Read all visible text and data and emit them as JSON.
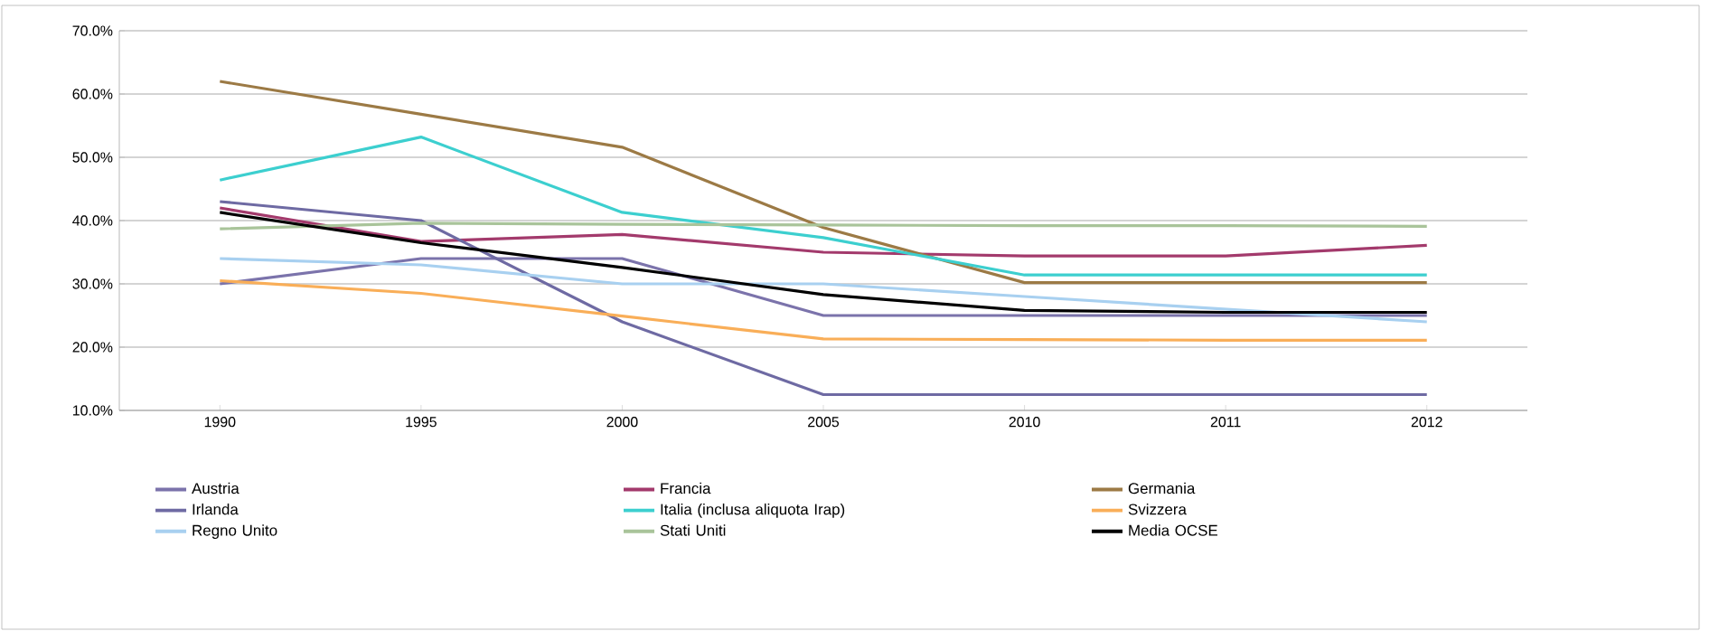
{
  "chart_data": {
    "type": "line",
    "categories": [
      "1990",
      "1995",
      "2000",
      "2005",
      "2010",
      "2011",
      "2012"
    ],
    "series": [
      {
        "name": "Austria",
        "color": "#7b73ab",
        "values": [
          30.0,
          34.0,
          34.0,
          25.0,
          25.0,
          25.0,
          25.0
        ]
      },
      {
        "name": "Francia",
        "color": "#a33a6c",
        "values": [
          42.0,
          36.7,
          37.8,
          35.0,
          34.4,
          34.4,
          36.1
        ]
      },
      {
        "name": "Germania",
        "color": "#9c7a45",
        "values": [
          62.0,
          56.8,
          51.6,
          38.9,
          30.2,
          30.2,
          30.2
        ]
      },
      {
        "name": "Irlanda",
        "color": "#6e6aa3",
        "values": [
          43.0,
          40.0,
          24.0,
          12.5,
          12.5,
          12.5,
          12.5
        ]
      },
      {
        "name": "Italia (inclusa aliquota Irap)",
        "color": "#3ccfcf",
        "values": [
          46.4,
          53.2,
          41.3,
          37.3,
          31.4,
          31.4,
          31.4
        ]
      },
      {
        "name": "Svizzera",
        "color": "#f9ae58",
        "values": [
          30.5,
          28.5,
          24.9,
          21.3,
          21.2,
          21.1,
          21.1
        ]
      },
      {
        "name": "Regno Unito",
        "color": "#a8d0f0",
        "values": [
          34.0,
          33.0,
          30.0,
          30.0,
          28.0,
          26.0,
          24.0
        ]
      },
      {
        "name": "Stati Uniti",
        "color": "#a9c49a",
        "values": [
          38.7,
          39.6,
          39.4,
          39.3,
          39.2,
          39.2,
          39.1
        ]
      },
      {
        "name": "Media OCSE",
        "color": "#000000",
        "values": [
          41.3,
          36.5,
          32.6,
          28.3,
          25.8,
          25.5,
          25.5
        ]
      }
    ],
    "ylim": [
      10,
      70
    ],
    "yticks": [
      {
        "value": 10,
        "label": "10.0%"
      },
      {
        "value": 20,
        "label": "20.0%"
      },
      {
        "value": 30,
        "label": "30.0%"
      },
      {
        "value": 40,
        "label": "40.0%"
      },
      {
        "value": 50,
        "label": "50.0%"
      },
      {
        "value": 60,
        "label": "60.0%"
      },
      {
        "value": 70,
        "label": "70.0%"
      }
    ],
    "grid": "y",
    "legend": "bottom",
    "marker": "none",
    "line_style": "solid"
  }
}
